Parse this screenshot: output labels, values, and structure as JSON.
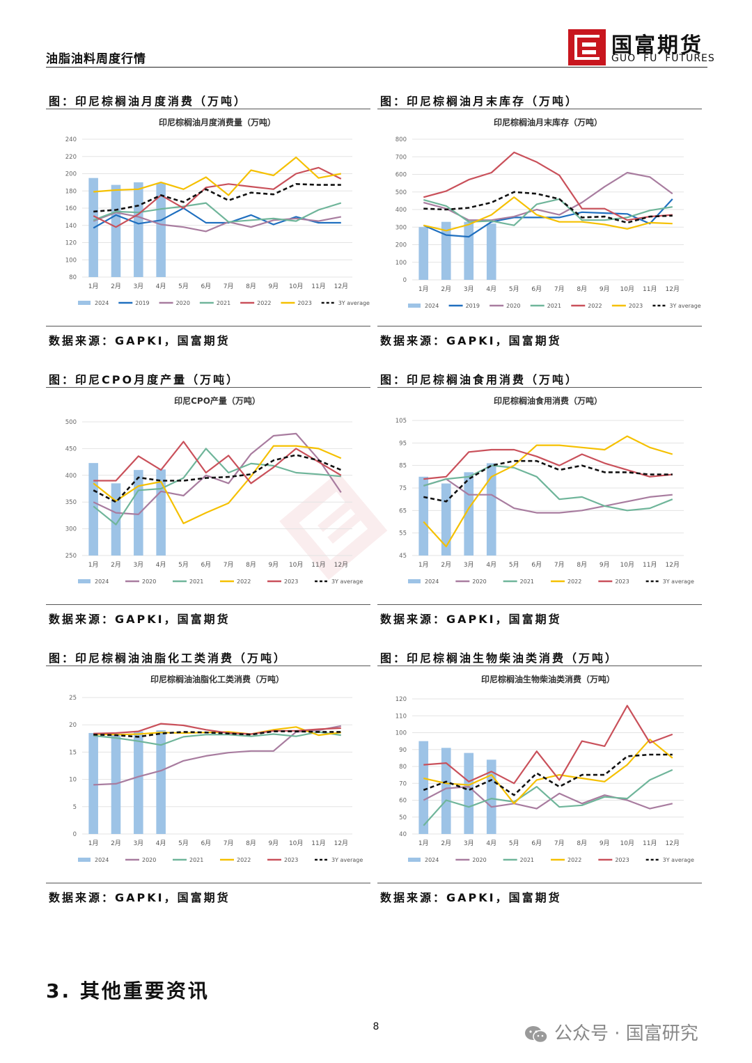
{
  "header": {
    "title": "油脂油料周度行情",
    "logo_cn": "国富期货",
    "logo_en": "GUO  FU  FUTURES"
  },
  "panels": [
    {
      "caption": "图：印尼棕榈油月度消费（万吨）",
      "source": "数据来源：GAPKI，国富期货"
    },
    {
      "caption": "图：印尼棕榈油月末库存（万吨）",
      "source": "数据来源：GAPKI，国富期货"
    },
    {
      "caption": "图：印尼CPO月度产量（万吨）",
      "source": "数据来源：GAPKI，国富期货"
    },
    {
      "caption": "图：印尼棕榈油食用消费（万吨）",
      "source": "数据来源：GAPKI，国富期货"
    },
    {
      "caption": "图：印尼棕榈油油脂化工类消费（万吨）",
      "source": "数据来源：GAPKI，国富期货"
    },
    {
      "caption": "图：印尼棕榈油生物柴油类消费（万吨）",
      "source": "数据来源：GAPKI，国富期货"
    }
  ],
  "section": {
    "title": "3. 其他重要资讯"
  },
  "footer": {
    "page": "8",
    "wechat": "公众号 · 国富研究"
  },
  "colors": {
    "2024": "#9dc3e6",
    "2019": "#1f6fbf",
    "2020": "#a87c9f",
    "2021": "#6fb59a",
    "2022": "#c9505a",
    "2023": "#f5c000",
    "avg": "#111111",
    "brand": "#c8161e"
  },
  "chart_data": [
    {
      "type": "bar+line",
      "title": "印尼棕榈油月度消费量（万吨）",
      "categories": [
        "1月",
        "2月",
        "3月",
        "4月",
        "5月",
        "6月",
        "7月",
        "8月",
        "9月",
        "10月",
        "11月",
        "12月"
      ],
      "ylim": [
        80,
        240
      ],
      "yticks": [
        80,
        100,
        120,
        140,
        160,
        180,
        200,
        220,
        240
      ],
      "series": [
        {
          "name": "2024",
          "kind": "bar",
          "color": "#9dc3e6",
          "values": [
            195,
            187,
            190,
            189,
            null,
            null,
            null,
            null,
            null,
            null,
            null,
            null
          ]
        },
        {
          "name": "2019",
          "kind": "line",
          "color": "#1f6fbf",
          "values": [
            137,
            152,
            142,
            146,
            160,
            143,
            143,
            152,
            141,
            150,
            143,
            143
          ]
        },
        {
          "name": "2020",
          "kind": "line",
          "color": "#a87c9f",
          "values": [
            145,
            155,
            150,
            141,
            138,
            133,
            144,
            138,
            146,
            148,
            145,
            150
          ]
        },
        {
          "name": "2021",
          "kind": "line",
          "color": "#6fb59a",
          "values": [
            146,
            156,
            155,
            159,
            162,
            166,
            144,
            146,
            148,
            145,
            158,
            166
          ]
        },
        {
          "name": "2022",
          "kind": "line",
          "color": "#c9505a",
          "values": [
            151,
            138,
            153,
            175,
            160,
            184,
            188,
            185,
            182,
            200,
            207,
            194
          ]
        },
        {
          "name": "2023",
          "kind": "line",
          "color": "#f5c000",
          "values": [
            179,
            181,
            182,
            190,
            182,
            196,
            175,
            204,
            198,
            219,
            195,
            200
          ]
        },
        {
          "name": "3Y average",
          "kind": "dash",
          "color": "#111111",
          "values": [
            156,
            158,
            163,
            175,
            167,
            182,
            169,
            178,
            176,
            188,
            187,
            187
          ]
        }
      ]
    },
    {
      "type": "bar+line",
      "title": "印尼棕榈油月末库存（万吨）",
      "categories": [
        "1月",
        "2月",
        "3月",
        "4月",
        "5月",
        "6月",
        "7月",
        "8月",
        "9月",
        "10月",
        "11月",
        "12月"
      ],
      "ylim": [
        0,
        800
      ],
      "yticks": [
        0,
        100,
        200,
        300,
        400,
        500,
        600,
        700,
        800
      ],
      "series": [
        {
          "name": "2024",
          "kind": "bar",
          "color": "#9dc3e6",
          "values": [
            300,
            330,
            330,
            320,
            null,
            null,
            null,
            null,
            null,
            null,
            null,
            null
          ]
        },
        {
          "name": "2019",
          "kind": "line",
          "color": "#1f6fbf",
          "values": [
            310,
            255,
            245,
            330,
            355,
            355,
            355,
            385,
            380,
            375,
            320,
            460
          ]
        },
        {
          "name": "2020",
          "kind": "line",
          "color": "#a87c9f",
          "values": [
            440,
            405,
            340,
            340,
            360,
            400,
            370,
            440,
            530,
            610,
            585,
            490
          ]
        },
        {
          "name": "2021",
          "kind": "line",
          "color": "#6fb59a",
          "values": [
            455,
            420,
            330,
            335,
            310,
            430,
            460,
            340,
            340,
            355,
            395,
            415
          ]
        },
        {
          "name": "2022",
          "kind": "line",
          "color": "#c9505a",
          "values": [
            470,
            505,
            570,
            610,
            725,
            670,
            595,
            405,
            405,
            340,
            360,
            370
          ]
        },
        {
          "name": "2023",
          "kind": "line",
          "color": "#f5c000",
          "values": [
            310,
            280,
            315,
            370,
            470,
            370,
            330,
            330,
            315,
            290,
            325,
            320
          ]
        },
        {
          "name": "3Y average",
          "kind": "dash",
          "color": "#111111",
          "values": [
            405,
            400,
            410,
            440,
            500,
            490,
            460,
            355,
            360,
            325,
            360,
            365
          ]
        }
      ]
    },
    {
      "type": "bar+line",
      "title": "印尼CPO产量（万吨）",
      "categories": [
        "1月",
        "2月",
        "3月",
        "4月",
        "5月",
        "6月",
        "7月",
        "8月",
        "9月",
        "10月",
        "11月",
        "12月"
      ],
      "ylim": [
        250,
        500
      ],
      "yticks": [
        250,
        300,
        350,
        400,
        450,
        500
      ],
      "series": [
        {
          "name": "2024",
          "kind": "bar",
          "color": "#9dc3e6",
          "values": [
            423,
            385,
            410,
            411,
            null,
            null,
            null,
            null,
            null,
            null,
            null,
            null
          ]
        },
        {
          "name": "2020",
          "kind": "line",
          "color": "#a87c9f",
          "values": [
            350,
            330,
            327,
            370,
            362,
            400,
            385,
            440,
            474,
            478,
            430,
            368
          ]
        },
        {
          "name": "2021",
          "kind": "line",
          "color": "#6fb59a",
          "values": [
            342,
            308,
            372,
            375,
            395,
            450,
            405,
            422,
            418,
            405,
            402,
            398
          ]
        },
        {
          "name": "2022",
          "kind": "line",
          "color": "#f5c000",
          "values": [
            385,
            352,
            380,
            388,
            310,
            330,
            348,
            398,
            455,
            455,
            450,
            432
          ]
        },
        {
          "name": "2023",
          "kind": "line",
          "color": "#c9505a",
          "values": [
            390,
            390,
            436,
            410,
            463,
            405,
            437,
            385,
            415,
            450,
            425,
            400
          ]
        },
        {
          "name": "3Y average",
          "kind": "dash",
          "color": "#111111",
          "values": [
            372,
            350,
            396,
            390,
            390,
            395,
            397,
            402,
            428,
            438,
            428,
            410
          ]
        }
      ]
    },
    {
      "type": "bar+line",
      "title": "印尼棕榈油食用消费（万吨）",
      "categories": [
        "1月",
        "2月",
        "3月",
        "4月",
        "5月",
        "6月",
        "7月",
        "8月",
        "9月",
        "10月",
        "11月",
        "12月"
      ],
      "ylim": [
        45,
        105
      ],
      "yticks": [
        45,
        55,
        65,
        75,
        85,
        95,
        105
      ],
      "series": [
        {
          "name": "2024",
          "kind": "bar",
          "color": "#9dc3e6",
          "values": [
            80,
            77,
            82,
            86,
            null,
            null,
            null,
            null,
            null,
            null,
            null,
            null
          ]
        },
        {
          "name": "2020",
          "kind": "line",
          "color": "#a87c9f",
          "values": [
            76,
            79,
            72,
            72,
            66,
            64,
            64,
            65,
            67,
            69,
            71,
            72
          ]
        },
        {
          "name": "2021",
          "kind": "line",
          "color": "#6fb59a",
          "values": [
            76,
            79,
            80,
            85,
            84,
            80,
            70,
            71,
            67,
            65,
            66,
            70
          ]
        },
        {
          "name": "2022",
          "kind": "line",
          "color": "#f5c000",
          "values": [
            60,
            49,
            66,
            80,
            85,
            94,
            94,
            93,
            92,
            98,
            93,
            90
          ]
        },
        {
          "name": "2023",
          "kind": "line",
          "color": "#c9505a",
          "values": [
            79,
            80,
            91,
            92,
            92,
            89,
            85,
            90,
            86,
            83,
            80,
            81
          ]
        },
        {
          "name": "3Y average",
          "kind": "dash",
          "color": "#111111",
          "values": [
            71,
            69,
            79,
            85,
            87,
            87,
            83,
            85,
            82,
            82,
            81,
            81
          ]
        }
      ]
    },
    {
      "type": "bar+line",
      "title": "印尼棕榈油油脂化工类消费（万吨）",
      "categories": [
        "1月",
        "2月",
        "3月",
        "4月",
        "5月",
        "6月",
        "7月",
        "8月",
        "9月",
        "10月",
        "11月",
        "12月"
      ],
      "ylim": [
        0,
        25
      ],
      "yticks": [
        0,
        5,
        10,
        15,
        20,
        25
      ],
      "series": [
        {
          "name": "2024",
          "kind": "bar",
          "color": "#9dc3e6",
          "values": [
            18.5,
            18.2,
            18.8,
            19.0,
            null,
            null,
            null,
            null,
            null,
            null,
            null,
            null
          ]
        },
        {
          "name": "2020",
          "kind": "line",
          "color": "#a87c9f",
          "values": [
            9.0,
            9.2,
            10.5,
            11.6,
            13.4,
            14.3,
            14.9,
            15.2,
            15.2,
            18.7,
            19.0,
            19.8
          ]
        },
        {
          "name": "2021",
          "kind": "line",
          "color": "#6fb59a",
          "values": [
            18.0,
            17.6,
            17.0,
            16.3,
            17.8,
            18.2,
            18.2,
            17.9,
            18.3,
            17.9,
            18.7,
            18.1
          ]
        },
        {
          "name": "2022",
          "kind": "line",
          "color": "#f5c000",
          "values": [
            18.3,
            18.2,
            18.3,
            18.6,
            18.5,
            18.6,
            18.7,
            18.3,
            19.1,
            19.6,
            18.1,
            18.6
          ]
        },
        {
          "name": "2023",
          "kind": "line",
          "color": "#c9505a",
          "values": [
            18.4,
            18.5,
            18.8,
            20.2,
            19.9,
            19.1,
            18.5,
            18.3,
            18.9,
            18.9,
            19.2,
            19.4
          ]
        },
        {
          "name": "3Y average",
          "kind": "dash",
          "color": "#111111",
          "values": [
            18.2,
            18.1,
            17.8,
            18.4,
            18.7,
            18.6,
            18.4,
            18.2,
            18.8,
            18.8,
            18.7,
            18.7
          ]
        }
      ]
    },
    {
      "type": "bar+line",
      "title": "印尼棕榈油生物柴油类消费（万吨）",
      "categories": [
        "1月",
        "2月",
        "3月",
        "4月",
        "5月",
        "6月",
        "7月",
        "8月",
        "9月",
        "10月",
        "11月",
        "12月"
      ],
      "ylim": [
        40,
        120
      ],
      "yticks": [
        40,
        50,
        60,
        70,
        80,
        90,
        100,
        110,
        120
      ],
      "series": [
        {
          "name": "2024",
          "kind": "bar",
          "color": "#9dc3e6",
          "values": [
            95,
            91,
            88,
            84,
            null,
            null,
            null,
            null,
            null,
            null,
            null,
            null
          ]
        },
        {
          "name": "2020",
          "kind": "line",
          "color": "#a87c9f",
          "values": [
            60,
            67,
            68,
            56,
            58,
            55,
            64,
            58,
            63,
            60,
            55,
            58
          ]
        },
        {
          "name": "2021",
          "kind": "line",
          "color": "#6fb59a",
          "values": [
            45,
            60,
            56,
            61,
            59,
            68,
            56,
            57,
            62,
            61,
            72,
            78
          ]
        },
        {
          "name": "2022",
          "kind": "line",
          "color": "#f5c000",
          "values": [
            73,
            70,
            69,
            75,
            58,
            72,
            75,
            73,
            71,
            81,
            96,
            85
          ]
        },
        {
          "name": "2023",
          "kind": "line",
          "color": "#c9505a",
          "values": [
            81,
            82,
            71,
            77,
            70,
            89,
            72,
            95,
            92,
            116,
            94,
            99
          ]
        },
        {
          "name": "3Y average",
          "kind": "dash",
          "color": "#111111",
          "values": [
            66,
            71,
            66,
            72,
            63,
            76,
            68,
            75,
            75,
            86,
            87,
            87
          ]
        }
      ]
    }
  ]
}
